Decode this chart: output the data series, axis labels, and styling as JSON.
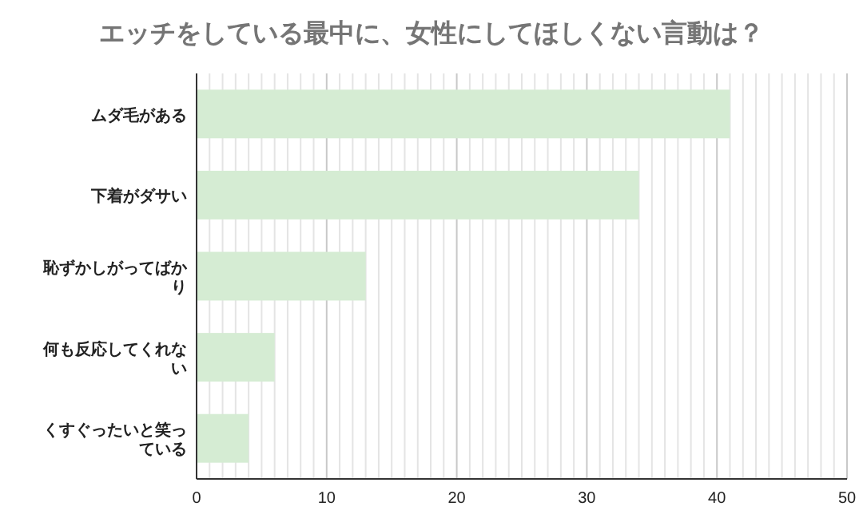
{
  "chart_data": {
    "type": "bar",
    "orientation": "horizontal",
    "title": "エッチをしている最中に、女性にしてほしくない言動は？",
    "categories": [
      "ムダ毛がある",
      "下着がダサい",
      "恥ずかしがってばかり",
      "何も反応してくれない",
      "くすぐったいと笑っている"
    ],
    "values": [
      41,
      34,
      13,
      6,
      4
    ],
    "color": "#d5ecd3",
    "xlim": [
      0,
      50
    ],
    "xticks": [
      0,
      10,
      20,
      30,
      40,
      50
    ],
    "grid": "x"
  }
}
